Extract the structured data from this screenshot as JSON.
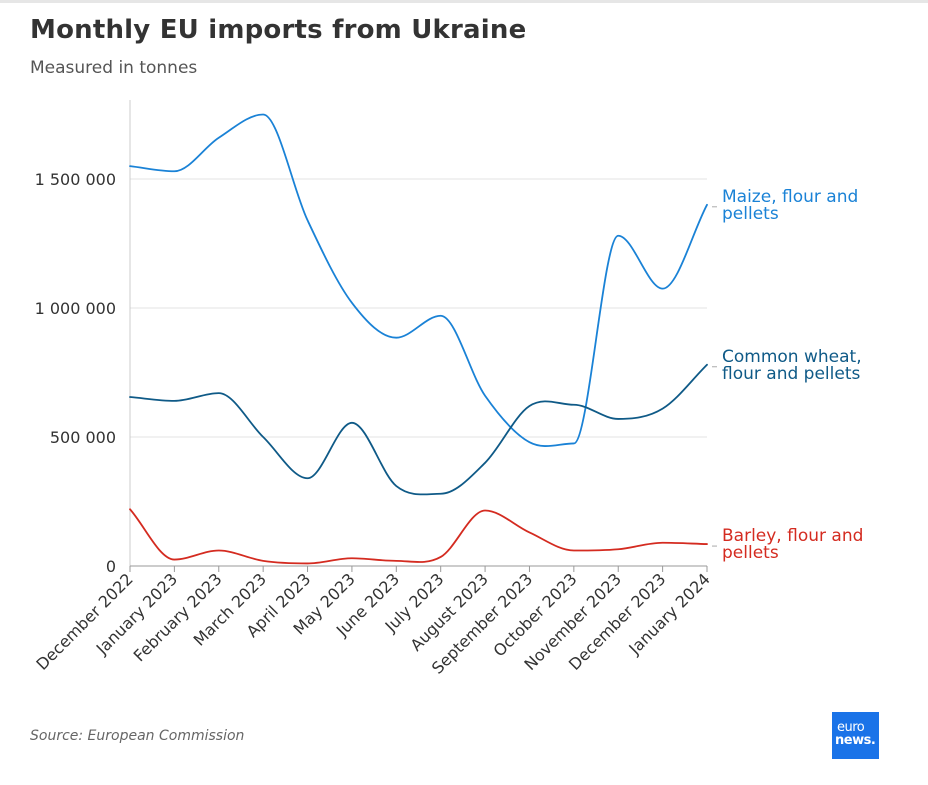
{
  "title": "Monthly EU imports from Ukraine",
  "subtitle": "Measured in tonnes",
  "source": "Source: European Commission",
  "logo": {
    "line1": "euro",
    "line2": "news."
  },
  "colors": {
    "maize": "#1a82d6",
    "wheat": "#0f5a87",
    "barley": "#d42b20",
    "grid": "#e3e3e3",
    "axis": "#cccccc"
  },
  "chart_data": {
    "type": "line",
    "title": "Monthly EU imports from Ukraine",
    "subtitle": "Measured in tonnes",
    "categories": [
      "December 2022",
      "January 2023",
      "February 2023",
      "March 2023",
      "April 2023",
      "May 2023",
      "June 2023",
      "July 2023",
      "August 2023",
      "September 2023",
      "October 2023",
      "November 2023",
      "December 2023",
      "January 2024"
    ],
    "y_ticks": [
      0,
      500000,
      1000000,
      1500000
    ],
    "y_tick_labels": [
      "0",
      "500 000",
      "1 000 000",
      "1 500 000"
    ],
    "ylim": [
      0,
      1800000
    ],
    "grid": true,
    "series": [
      {
        "name": "Maize, flour and pellets",
        "label_lines": [
          "Maize, flour and",
          "pellets"
        ],
        "color": "#1a82d6",
        "values": [
          1550000,
          1530000,
          1660000,
          1750000,
          1340000,
          1020000,
          885000,
          970000,
          660000,
          480000,
          475000,
          1280000,
          1075000,
          1400000
        ]
      },
      {
        "name": "Common wheat, flour and pellets",
        "label_lines": [
          "Common wheat,",
          "flour and pellets"
        ],
        "color": "#0f5a87",
        "values": [
          655000,
          640000,
          670000,
          500000,
          340000,
          555000,
          310000,
          280000,
          400000,
          620000,
          625000,
          570000,
          610000,
          780000
        ]
      },
      {
        "name": "Barley, flour and pellets",
        "label_lines": [
          "Barley, flour and",
          "pellets"
        ],
        "color": "#d42b20",
        "values": [
          220000,
          25000,
          60000,
          20000,
          10000,
          30000,
          20000,
          35000,
          215000,
          130000,
          60000,
          65000,
          90000,
          85000
        ]
      }
    ]
  }
}
